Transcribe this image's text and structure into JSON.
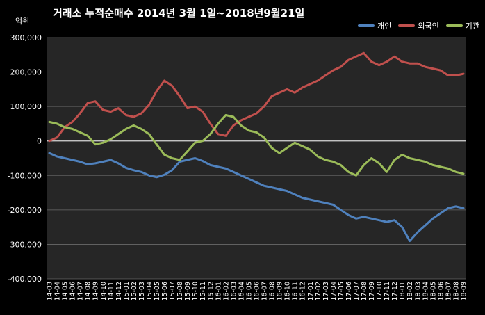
{
  "title": "거래소  누적순매수 2014년 3월 1일~2018년9월21일",
  "chart_data": {
    "type": "line",
    "ylabel": "억원",
    "ylim": [
      -400000,
      300000
    ],
    "yticks": [
      300000,
      200000,
      100000,
      0,
      -100000,
      -200000,
      -300000,
      -400000
    ],
    "ytick_labels": [
      "300,000",
      "200,000",
      "100,000",
      "0",
      "-100,000",
      "-200,000",
      "-300,000",
      "-400,000"
    ],
    "x": [
      "14-03",
      "14-04",
      "14-05",
      "14-06",
      "14-07",
      "14-08",
      "14-09",
      "14-10",
      "14-11",
      "14-12",
      "15-01",
      "15-02",
      "15-03",
      "15-04",
      "15-05",
      "15-06",
      "15-07",
      "15-08",
      "15-09",
      "15-10",
      "15-11",
      "15-12",
      "16-01",
      "16-02",
      "16-03",
      "16-04",
      "16-05",
      "16-06",
      "16-07",
      "16-08",
      "16-09",
      "16-10",
      "16-11",
      "16-12",
      "17-01",
      "17-02",
      "17-03",
      "17-04",
      "17-05",
      "17-06",
      "17-07",
      "17-08",
      "17-09",
      "17-10",
      "17-11",
      "17-12",
      "18-01",
      "18-02",
      "18-03",
      "18-04",
      "18-05",
      "18-06",
      "18-07",
      "18-08",
      "18-09"
    ],
    "legend_position": "top-right",
    "grid": true,
    "series": [
      {
        "name": "개인",
        "color": "#4f81bd",
        "values": [
          -35000,
          -45000,
          -50000,
          -55000,
          -60000,
          -68000,
          -65000,
          -60000,
          -55000,
          -65000,
          -78000,
          -85000,
          -90000,
          -100000,
          -105000,
          -98000,
          -85000,
          -60000,
          -55000,
          -50000,
          -58000,
          -70000,
          -75000,
          -80000,
          -90000,
          -100000,
          -110000,
          -120000,
          -130000,
          -135000,
          -140000,
          -145000,
          -155000,
          -165000,
          -170000,
          -175000,
          -180000,
          -185000,
          -200000,
          -215000,
          -225000,
          -220000,
          -225000,
          -230000,
          -235000,
          -230000,
          -250000,
          -290000,
          -265000,
          -245000,
          -225000,
          -210000,
          -195000,
          -190000,
          -195000
        ]
      },
      {
        "name": "외국인",
        "color": "#c0504d",
        "values": [
          0,
          10000,
          40000,
          55000,
          80000,
          110000,
          115000,
          90000,
          85000,
          95000,
          75000,
          70000,
          80000,
          105000,
          145000,
          175000,
          160000,
          130000,
          95000,
          100000,
          85000,
          50000,
          20000,
          15000,
          45000,
          60000,
          70000,
          80000,
          100000,
          130000,
          140000,
          150000,
          140000,
          155000,
          165000,
          175000,
          190000,
          205000,
          215000,
          235000,
          245000,
          255000,
          230000,
          220000,
          230000,
          245000,
          230000,
          225000,
          225000,
          215000,
          210000,
          205000,
          190000,
          190000,
          195000
        ]
      },
      {
        "name": "기관",
        "color": "#9bbb59",
        "values": [
          55000,
          50000,
          40000,
          35000,
          25000,
          15000,
          -10000,
          -5000,
          5000,
          20000,
          35000,
          45000,
          35000,
          20000,
          -10000,
          -40000,
          -50000,
          -55000,
          -30000,
          -5000,
          0,
          20000,
          50000,
          75000,
          70000,
          45000,
          30000,
          25000,
          10000,
          -20000,
          -35000,
          -20000,
          -5000,
          -15000,
          -25000,
          -45000,
          -55000,
          -60000,
          -70000,
          -90000,
          -100000,
          -70000,
          -50000,
          -65000,
          -90000,
          -55000,
          -40000,
          -50000,
          -55000,
          -60000,
          -70000,
          -75000,
          -80000,
          -90000,
          -95000
        ]
      }
    ]
  }
}
